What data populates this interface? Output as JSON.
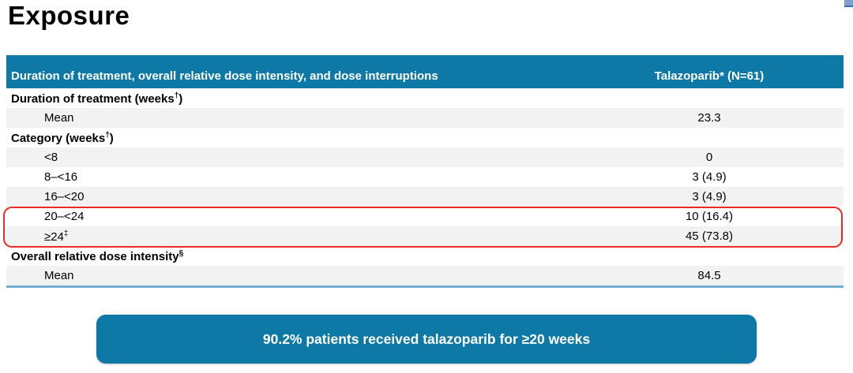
{
  "page": {
    "title": "Exposure"
  },
  "colors": {
    "accent_teal": "#0E79A7",
    "zebra_gray": "#F2F2F2",
    "highlight_red": "#EE2A24",
    "bottom_border_blue": "#74AED1"
  },
  "table": {
    "header": {
      "col1": "Duration of treatment, overall relative dose intensity, and dose interruptions",
      "col2": "Talazoparib* (N=61)"
    },
    "rows": [
      {
        "label": "Duration of treatment (weeks†)",
        "value": ""
      },
      {
        "label": "Mean",
        "value": "23.3"
      },
      {
        "label": "Category (weeks†)",
        "value": ""
      },
      {
        "label": "<8",
        "value": "0"
      },
      {
        "label": "8–<16",
        "value": "3 (4.9)"
      },
      {
        "label": "16–<20",
        "value": "3 (4.9)"
      },
      {
        "label": "20–<24",
        "value": "10 (16.4)"
      },
      {
        "label": "≥24‡",
        "value": "45 (73.8)"
      },
      {
        "label": "Overall relative dose intensity§",
        "value": ""
      },
      {
        "label": "Mean",
        "value": "84.5"
      }
    ],
    "highlighted_row_labels": [
      "20–<24",
      "≥24‡"
    ]
  },
  "callout": {
    "text": "90.2% patients received talazoparib for ≥20 weeks"
  }
}
